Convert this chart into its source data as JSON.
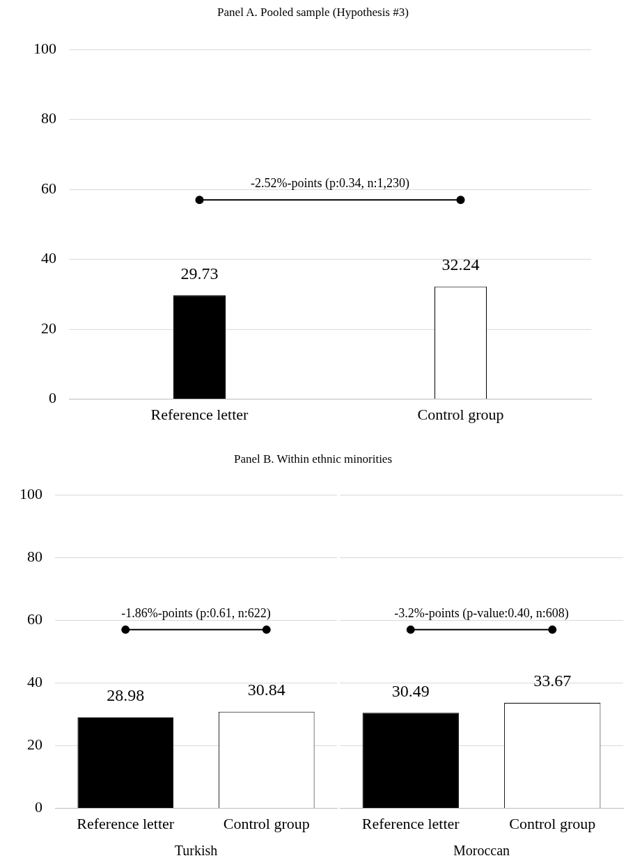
{
  "chart_data": [
    {
      "type": "bar",
      "title": "Panel A. Pooled sample (Hypothesis #3)",
      "categories": [
        "Reference letter",
        "Control group"
      ],
      "values": [
        29.73,
        32.24
      ],
      "colors": [
        "#000000",
        "#ffffff"
      ],
      "ylim": [
        0,
        100
      ],
      "yticks": [
        0,
        20,
        40,
        60,
        80,
        100
      ],
      "grid": "y",
      "data_labels": true,
      "annotations": [
        "-2.52%-points (p:0.34, n:1,230)"
      ]
    },
    {
      "type": "bar",
      "title": "Panel B. Within ethnic minorities",
      "xlabel": "Turkish",
      "categories": [
        "Reference letter",
        "Control group"
      ],
      "values": [
        28.98,
        30.84
      ],
      "colors": [
        "#000000",
        "#ffffff"
      ],
      "ylim": [
        0,
        100
      ],
      "yticks": [
        0,
        20,
        40,
        60,
        80,
        100
      ],
      "grid": "y",
      "data_labels": true,
      "annotations": [
        "-1.86%-points (p:0.61, n:622)"
      ]
    },
    {
      "type": "bar",
      "xlabel": "Moroccan",
      "categories": [
        "Reference letter",
        "Control group"
      ],
      "values": [
        30.49,
        33.67
      ],
      "colors": [
        "#000000",
        "#ffffff"
      ],
      "ylim": [
        0,
        100
      ],
      "yticks": [
        0,
        20,
        40,
        60,
        80,
        100
      ],
      "grid": "y",
      "tick_labels": "x",
      "data_labels": true,
      "annotations": [
        "-3.2%-points (p-value:0.40, n:608)"
      ]
    }
  ]
}
